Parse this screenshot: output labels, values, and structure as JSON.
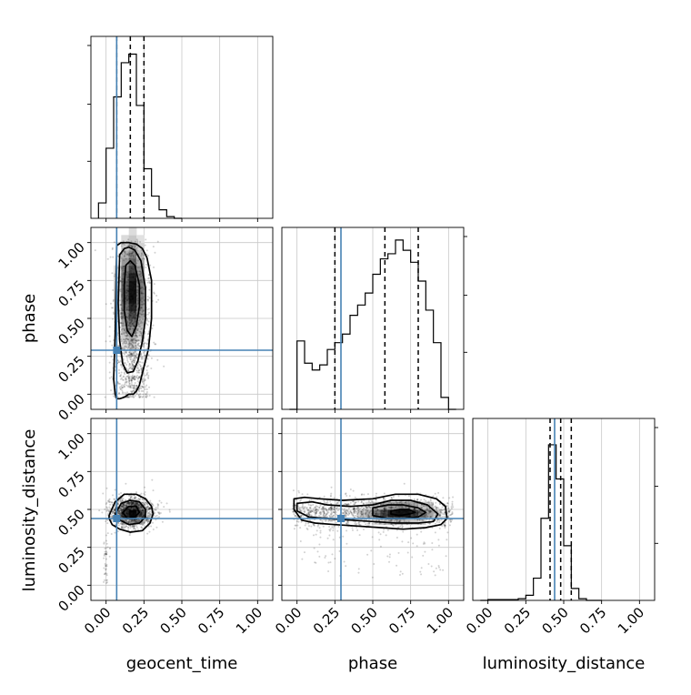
{
  "chart_data": {
    "type": "corner",
    "parameters": [
      "geocent_time",
      "phase",
      "luminosity_distance"
    ],
    "axis_range": [
      -0.1,
      1.1
    ],
    "tick_labels": [
      "0.00",
      "0.25",
      "0.50",
      "0.75",
      "1.00"
    ],
    "grid": true,
    "truth_color": "#4682b4",
    "truths": {
      "geocent_time": 0.07,
      "phase": 0.29,
      "luminosity_distance": 0.44
    },
    "quantiles": {
      "geocent_time": [
        0.07,
        0.16,
        0.25
      ],
      "phase": [
        0.25,
        0.58,
        0.8
      ],
      "luminosity_distance": [
        0.41,
        0.48,
        0.55
      ]
    },
    "histograms": {
      "geocent_time": {
        "edges": [
          -0.05,
          0.0,
          0.05,
          0.1,
          0.15,
          0.2,
          0.25,
          0.3,
          0.35,
          0.4,
          0.45,
          0.5
        ],
        "counts": [
          0.09,
          0.41,
          0.71,
          0.91,
          0.96,
          0.66,
          0.29,
          0.13,
          0.05,
          0.01,
          0.0
        ]
      },
      "phase": {
        "edges": [
          -0.05,
          0.0,
          0.05,
          0.1,
          0.15,
          0.2,
          0.25,
          0.3,
          0.35,
          0.4,
          0.45,
          0.5,
          0.55,
          0.6,
          0.65,
          0.7,
          0.75,
          0.8,
          0.85,
          0.9,
          0.95,
          1.0,
          1.05
        ],
        "counts": [
          0.0,
          0.4,
          0.27,
          0.23,
          0.26,
          0.35,
          0.39,
          0.44,
          0.55,
          0.61,
          0.68,
          0.79,
          0.88,
          0.91,
          0.99,
          0.93,
          0.86,
          0.75,
          0.58,
          0.39,
          0.07,
          0.0
        ]
      },
      "luminosity_distance": {
        "edges": [
          -0.05,
          0.0,
          0.05,
          0.1,
          0.15,
          0.2,
          0.25,
          0.3,
          0.35,
          0.4,
          0.45,
          0.5,
          0.55,
          0.6,
          0.65,
          0.7,
          0.75
        ],
        "counts": [
          0.0,
          0.005,
          0.005,
          0.005,
          0.005,
          0.01,
          0.03,
          0.13,
          0.48,
          0.91,
          0.71,
          0.32,
          0.07,
          0.01,
          0.0,
          0.0
        ]
      }
    },
    "joint": {
      "phase_vs_geocent_time": {
        "x_center": 0.17,
        "x_sd": 0.06,
        "y_levels": [
          0.01,
          0.07,
          0.14,
          0.22,
          0.32,
          0.43,
          0.55,
          0.67,
          0.78,
          0.88,
          0.96
        ],
        "contours": [
          {
            "x": [
              0.07,
              0.1,
              0.15,
              0.2,
              0.24,
              0.27,
              0.3,
              0.3,
              0.28,
              0.24,
              0.22,
              0.2,
              0.18,
              0.15,
              0.12,
              0.09,
              0.07,
              0.06,
              0.05,
              0.06,
              0.07
            ],
            "y": [
              0.98,
              1.0,
              1.0,
              0.99,
              0.96,
              0.9,
              0.75,
              0.5,
              0.3,
              0.14,
              0.06,
              0.02,
              0.0,
              0.0,
              -0.02,
              -0.03,
              -0.03,
              0.0,
              0.1,
              0.4,
              0.98
            ]
          },
          {
            "x": [
              0.09,
              0.12,
              0.15,
              0.19,
              0.23,
              0.26,
              0.26,
              0.24,
              0.21,
              0.18,
              0.14,
              0.11,
              0.09,
              0.08,
              0.09
            ],
            "y": [
              0.92,
              0.96,
              0.97,
              0.95,
              0.88,
              0.7,
              0.5,
              0.35,
              0.22,
              0.15,
              0.14,
              0.2,
              0.35,
              0.6,
              0.92
            ]
          },
          {
            "x": [
              0.13,
              0.16,
              0.19,
              0.22,
              0.22,
              0.2,
              0.17,
              0.14,
              0.12,
              0.12,
              0.13
            ],
            "y": [
              0.85,
              0.88,
              0.85,
              0.72,
              0.58,
              0.45,
              0.38,
              0.42,
              0.55,
              0.72,
              0.85
            ]
          }
        ]
      },
      "luminosity_distance_vs_geocent_time": {
        "x_center": 0.17,
        "x_sd": 0.07,
        "y_center": 0.48,
        "y_sd": 0.05,
        "contours": [
          {
            "x": [
              0.02,
              0.06,
              0.12,
              0.2,
              0.26,
              0.3,
              0.31,
              0.29,
              0.24,
              0.16,
              0.09,
              0.04,
              0.02,
              0.02
            ],
            "y": [
              0.46,
              0.55,
              0.6,
              0.6,
              0.57,
              0.52,
              0.47,
              0.41,
              0.36,
              0.35,
              0.37,
              0.4,
              0.44,
              0.46
            ]
          },
          {
            "x": [
              0.06,
              0.1,
              0.16,
              0.22,
              0.26,
              0.26,
              0.22,
              0.15,
              0.09,
              0.06
            ],
            "y": [
              0.47,
              0.54,
              0.56,
              0.55,
              0.5,
              0.45,
              0.41,
              0.4,
              0.43,
              0.47
            ]
          },
          {
            "x": [
              0.11,
              0.15,
              0.2,
              0.22,
              0.19,
              0.14,
              0.11
            ],
            "y": [
              0.48,
              0.52,
              0.52,
              0.48,
              0.45,
              0.44,
              0.48
            ]
          }
        ]
      },
      "luminosity_distance_vs_phase": {
        "y_center": 0.48,
        "y_sd": 0.05,
        "x_levels": [
          0.0,
          0.05,
          0.1,
          0.15,
          0.2,
          0.25,
          0.3,
          0.35,
          0.4,
          0.45,
          0.5,
          0.55,
          0.6,
          0.65,
          0.7,
          0.75,
          0.8,
          0.85,
          0.9,
          0.95,
          1.0
        ],
        "contours": [
          {
            "x": [
              -0.02,
              0.05,
              0.15,
              0.3,
              0.5,
              0.65,
              0.8,
              0.92,
              0.98,
              0.99,
              0.95,
              0.85,
              0.7,
              0.55,
              0.4,
              0.25,
              0.12,
              0.03,
              -0.02,
              -0.02
            ],
            "y": [
              0.57,
              0.58,
              0.57,
              0.56,
              0.57,
              0.6,
              0.6,
              0.57,
              0.52,
              0.44,
              0.4,
              0.38,
              0.37,
              0.38,
              0.39,
              0.4,
              0.41,
              0.43,
              0.5,
              0.57
            ]
          },
          {
            "x": [
              0.0,
              0.1,
              0.2,
              0.35,
              0.5,
              0.62,
              0.75,
              0.86,
              0.93,
              0.9,
              0.8,
              0.65,
              0.5,
              0.35,
              0.2,
              0.08,
              0.0,
              0.0
            ],
            "y": [
              0.54,
              0.55,
              0.53,
              0.52,
              0.53,
              0.56,
              0.56,
              0.53,
              0.47,
              0.42,
              0.41,
              0.41,
              0.42,
              0.43,
              0.44,
              0.45,
              0.49,
              0.54
            ]
          },
          {
            "x": [
              0.5,
              0.6,
              0.7,
              0.8,
              0.85,
              0.8,
              0.7,
              0.6,
              0.5,
              0.5
            ],
            "y": [
              0.51,
              0.53,
              0.53,
              0.51,
              0.48,
              0.45,
              0.44,
              0.44,
              0.46,
              0.51
            ]
          },
          {
            "x": [
              0.62,
              0.68,
              0.74,
              0.78,
              0.74,
              0.68,
              0.62,
              0.62
            ],
            "y": [
              0.49,
              0.5,
              0.5,
              0.48,
              0.47,
              0.46,
              0.47,
              0.49
            ]
          }
        ]
      }
    }
  }
}
